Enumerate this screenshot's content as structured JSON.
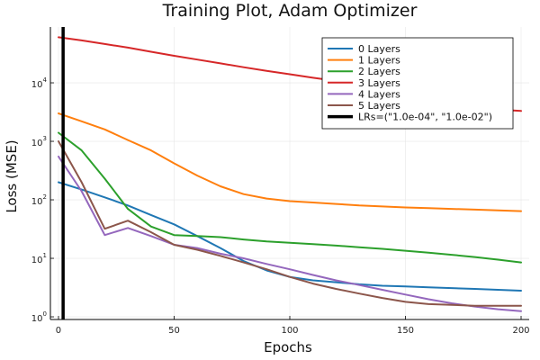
{
  "chart_data": {
    "type": "line",
    "title": "Training Plot, Adam Optimizer",
    "xlabel": "Epochs",
    "ylabel": "Loss (MSE)",
    "xlim": [
      0,
      200
    ],
    "ylim": [
      0.9,
      90000
    ],
    "yscale": "log",
    "x_ticks": [
      0,
      50,
      100,
      150,
      200
    ],
    "y_ticks": [
      {
        "value": 1,
        "base": "10",
        "exp": "0"
      },
      {
        "value": 10,
        "base": "10",
        "exp": "1"
      },
      {
        "value": 100,
        "base": "10",
        "exp": "2"
      },
      {
        "value": 1000,
        "base": "10",
        "exp": "3"
      },
      {
        "value": 10000,
        "base": "10",
        "exp": "4"
      }
    ],
    "grid": true,
    "legend_position": "top-right",
    "x": [
      0,
      10,
      20,
      30,
      40,
      50,
      60,
      70,
      80,
      90,
      100,
      110,
      120,
      130,
      140,
      150,
      160,
      170,
      180,
      190,
      200
    ],
    "series": [
      {
        "name": "0 Layers",
        "color": "#1f77b4",
        "values": [
          200,
          150,
          110,
          80,
          55,
          38,
          24,
          15,
          9,
          6.2,
          4.8,
          4.2,
          3.9,
          3.6,
          3.4,
          3.3,
          3.2,
          3.1,
          3.0,
          2.9,
          2.8
        ]
      },
      {
        "name": "1 Layers",
        "color": "#ff7f0e",
        "values": [
          3000,
          2200,
          1600,
          1050,
          700,
          420,
          260,
          170,
          125,
          105,
          95,
          90,
          85,
          80,
          77,
          74,
          72,
          70,
          68,
          66,
          64
        ]
      },
      {
        "name": "2 Layers",
        "color": "#2ca02c",
        "values": [
          1400,
          700,
          230,
          70,
          35,
          25,
          24,
          23,
          21,
          19.5,
          18.5,
          17.5,
          16.5,
          15.5,
          14.5,
          13.5,
          12.5,
          11.5,
          10.5,
          9.5,
          8.5
        ]
      },
      {
        "name": "3 Layers",
        "color": "#d62728",
        "values": [
          60000,
          53000,
          46000,
          40000,
          34000,
          29000,
          25000,
          21500,
          18500,
          16000,
          14000,
          12200,
          10800,
          9500,
          8000,
          6500,
          5300,
          4500,
          3900,
          3500,
          3300
        ]
      },
      {
        "name": "4 Layers",
        "color": "#9467bd",
        "values": [
          550,
          140,
          25,
          33,
          24,
          17,
          15,
          12,
          10,
          8,
          6.5,
          5.2,
          4.2,
          3.5,
          2.9,
          2.4,
          2.0,
          1.7,
          1.5,
          1.35,
          1.25
        ]
      },
      {
        "name": "5 Layers",
        "color": "#8c564b",
        "values": [
          1000,
          200,
          32,
          44,
          28,
          17,
          14,
          11,
          8.5,
          6.5,
          4.8,
          3.7,
          3.0,
          2.5,
          2.1,
          1.8,
          1.65,
          1.6,
          1.55,
          1.55,
          1.55
        ]
      }
    ],
    "vline": {
      "name": "LRs=(\"1.0e-04\", \"1.0e-02\")",
      "x": 2,
      "color": "#000000"
    }
  }
}
